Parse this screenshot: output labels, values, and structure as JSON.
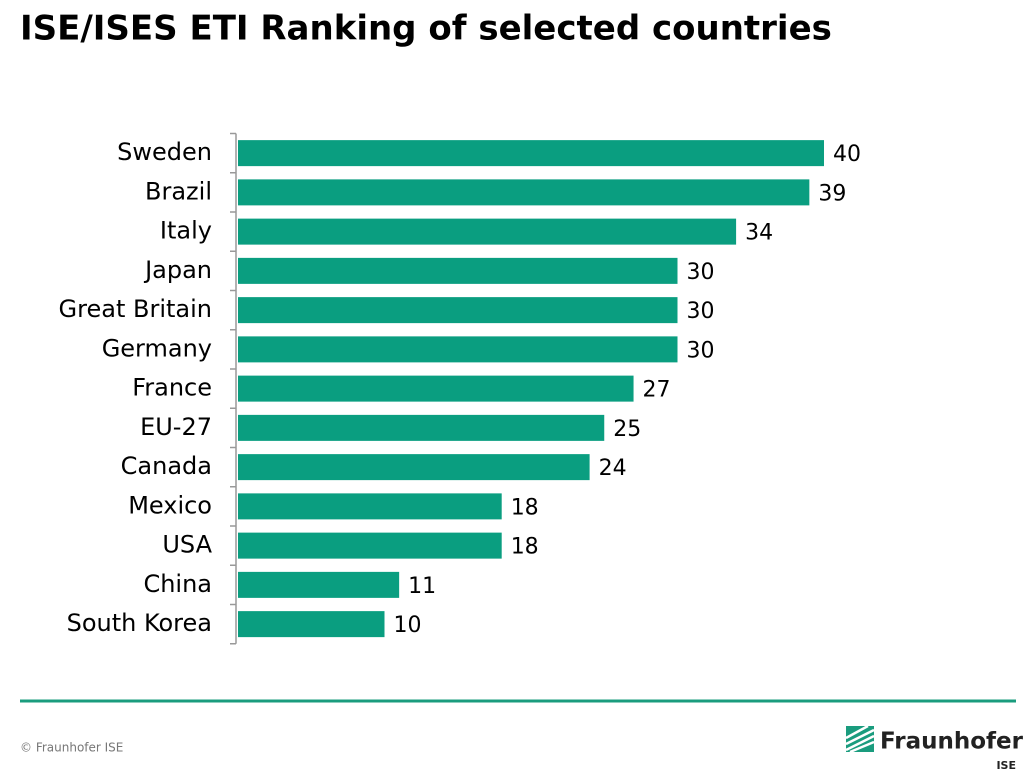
{
  "chart_data": {
    "type": "hbar",
    "title": "ISE/ISES ETI Ranking of selected countries",
    "categories": [
      "Sweden",
      "Brazil",
      "Italy",
      "Japan",
      "Great Britain",
      "Germany",
      "France",
      "EU-27",
      "Canada",
      "Mexico",
      "USA",
      "China",
      "South Korea"
    ],
    "values": [
      40,
      39,
      34,
      30,
      30,
      30,
      27,
      25,
      24,
      18,
      18,
      11,
      10
    ],
    "color": "#0a9e80"
  },
  "footer": {
    "copyright": "© Fraunhofer ISE",
    "logo": "Fraunhofer",
    "logo_sub": "ISE"
  }
}
